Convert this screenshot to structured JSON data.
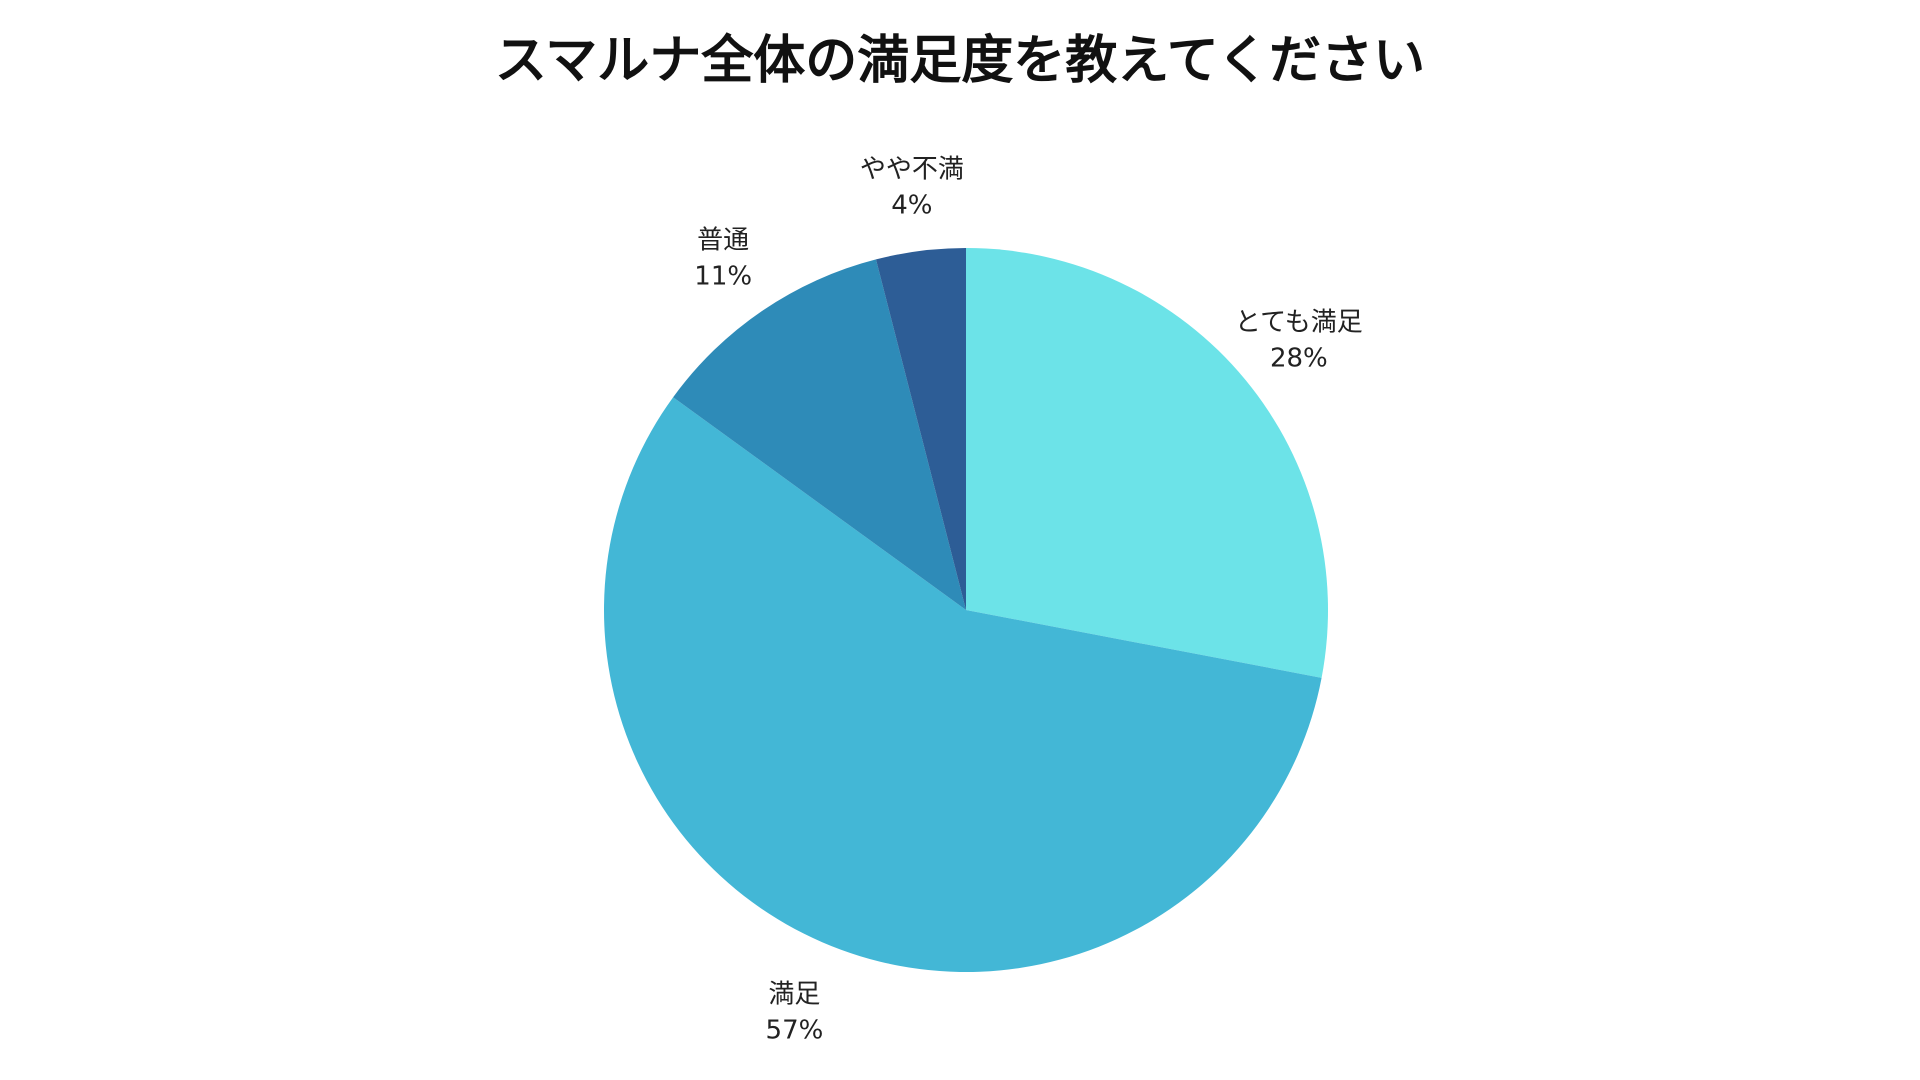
{
  "chart_data": {
    "type": "pie",
    "title": "スマルナ全体の満足度を教えてください",
    "slices": [
      {
        "label": "とても満足",
        "value": 28,
        "display": "28%",
        "color": "#6ce3e8"
      },
      {
        "label": "満足",
        "value": 57,
        "display": "57%",
        "color": "#43b7d6"
      },
      {
        "label": "普通",
        "value": 11,
        "display": "11%",
        "color": "#2e8bb8"
      },
      {
        "label": "やや不満",
        "value": 4,
        "display": "4%",
        "color": "#2d5d96"
      }
    ],
    "start": "12 o'clock",
    "direction": "clockwise",
    "legend": "none"
  }
}
